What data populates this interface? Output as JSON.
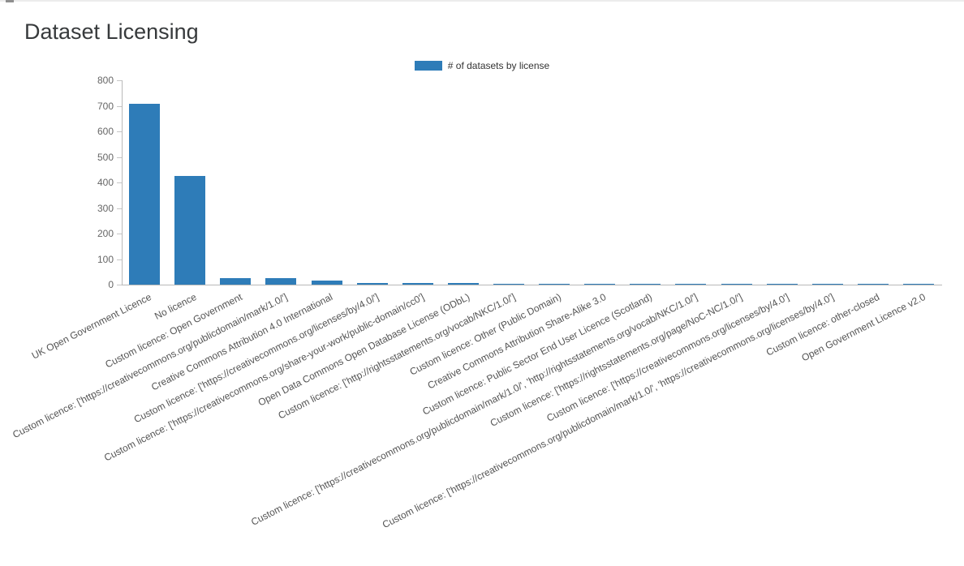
{
  "page": {
    "title": "Dataset Licensing"
  },
  "legend": {
    "label": "# of datasets by license"
  },
  "chart_data": {
    "type": "bar",
    "title": "Dataset Licensing",
    "legend_entries": [
      "# of datasets by license"
    ],
    "legend_position": "top",
    "bar_color": "#2e7cb8",
    "grid": false,
    "xlabel": "",
    "ylabel": "",
    "ylim": [
      0,
      800
    ],
    "yticks": [
      0,
      100,
      200,
      300,
      400,
      500,
      600,
      700,
      800
    ],
    "categories": [
      "UK Open Government Licence",
      "No licence",
      "Custom licence: Open Government",
      "Custom licence: ['https://creativecommons.org/publicdomain/mark/1.0/']",
      "Creative Commons Attribution 4.0 International",
      "Custom licence: ['https://creativecommons.org/licenses/by/4.0/']",
      "Custom licence: ['https://creativecommons.org/share-your-work/public-domain/cc0']",
      "Open Data Commons Open Database License (ODbL)",
      "Custom licence: ['http://rightsstatements.org/vocab/NKC/1.0/']",
      "Custom licence: Other (Public Domain)",
      "Creative Commons Attribution Share-Alike 3.0",
      "Custom licence: Public Sector End User Licence (Scotland)",
      "Custom licence: ['https://creativecommons.org/publicdomain/mark/1.0/', 'http://rightsstatements.org/vocab/NKC/1.0/']",
      "Custom licence: ['https://rightsstatements.org/page/NoC-NC/1.0/']",
      "Custom licence: ['https://creativecommons.org/licenses/by/4.0']",
      "Custom licence: ['https://creativecommons.org/publicdomain/mark/1.0/', 'https://creativecommons.org/licenses/by/4.0']",
      "Custom licence: other-closed",
      "Open Government Licence v2.0"
    ],
    "values": [
      708,
      425,
      25,
      24,
      16,
      7,
      6,
      5,
      4,
      2,
      2,
      2,
      1,
      1,
      1,
      1,
      1,
      1
    ]
  }
}
